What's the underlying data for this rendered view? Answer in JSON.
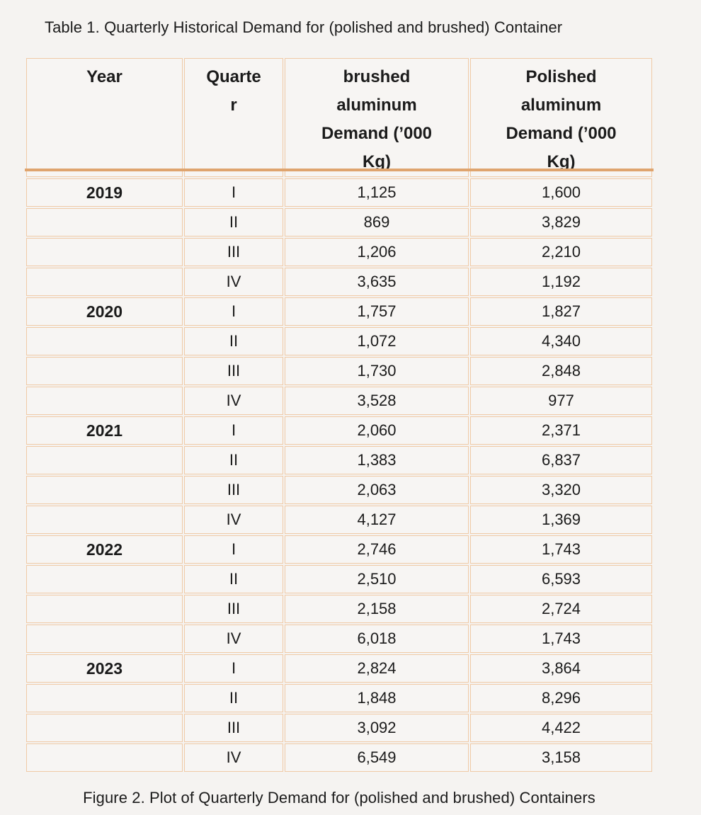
{
  "document": {
    "table_caption": "Table 1. Quarterly Historical Demand for (polished and brushed) Container",
    "figure_caption": "Figure 2. Plot of Quarterly Demand for (polished and brushed) Containers"
  },
  "colors": {
    "cell_border": "#f0caa6",
    "header_rule": "#dfa46e",
    "text": "#1b1b1b",
    "background": "#f5f3f1"
  },
  "table": {
    "headers": [
      "Year",
      "Quarter",
      "brushed aluminum Demand (’000 Kg)",
      "Polished aluminum Demand (’000 Kg)"
    ],
    "rows": [
      {
        "year": "2019",
        "quarter": "I",
        "brushed": "1,125",
        "polished": "1,600"
      },
      {
        "year": "",
        "quarter": "II",
        "brushed": "869",
        "polished": "3,829"
      },
      {
        "year": "",
        "quarter": "III",
        "brushed": "1,206",
        "polished": "2,210"
      },
      {
        "year": "",
        "quarter": "IV",
        "brushed": "3,635",
        "polished": "1,192"
      },
      {
        "year": "2020",
        "quarter": "I",
        "brushed": "1,757",
        "polished": "1,827"
      },
      {
        "year": "",
        "quarter": "II",
        "brushed": "1,072",
        "polished": "4,340"
      },
      {
        "year": "",
        "quarter": "III",
        "brushed": "1,730",
        "polished": "2,848"
      },
      {
        "year": "",
        "quarter": "IV",
        "brushed": "3,528",
        "polished": "977"
      },
      {
        "year": "2021",
        "quarter": "I",
        "brushed": "2,060",
        "polished": "2,371"
      },
      {
        "year": "",
        "quarter": "II",
        "brushed": "1,383",
        "polished": "6,837"
      },
      {
        "year": "",
        "quarter": "III",
        "brushed": "2,063",
        "polished": "3,320"
      },
      {
        "year": "",
        "quarter": "IV",
        "brushed": "4,127",
        "polished": "1,369"
      },
      {
        "year": "2022",
        "quarter": "I",
        "brushed": "2,746",
        "polished": "1,743"
      },
      {
        "year": "",
        "quarter": "II",
        "brushed": "2,510",
        "polished": "6,593"
      },
      {
        "year": "",
        "quarter": "III",
        "brushed": "2,158",
        "polished": "2,724"
      },
      {
        "year": "",
        "quarter": "IV",
        "brushed": "6,018",
        "polished": "1,743"
      },
      {
        "year": "2023",
        "quarter": "I",
        "brushed": "2,824",
        "polished": "3,864"
      },
      {
        "year": "",
        "quarter": "II",
        "brushed": "1,848",
        "polished": "8,296"
      },
      {
        "year": "",
        "quarter": "III",
        "brushed": "3,092",
        "polished": "4,422"
      },
      {
        "year": "",
        "quarter": "IV",
        "brushed": "6,549",
        "polished": "3,158"
      }
    ]
  }
}
